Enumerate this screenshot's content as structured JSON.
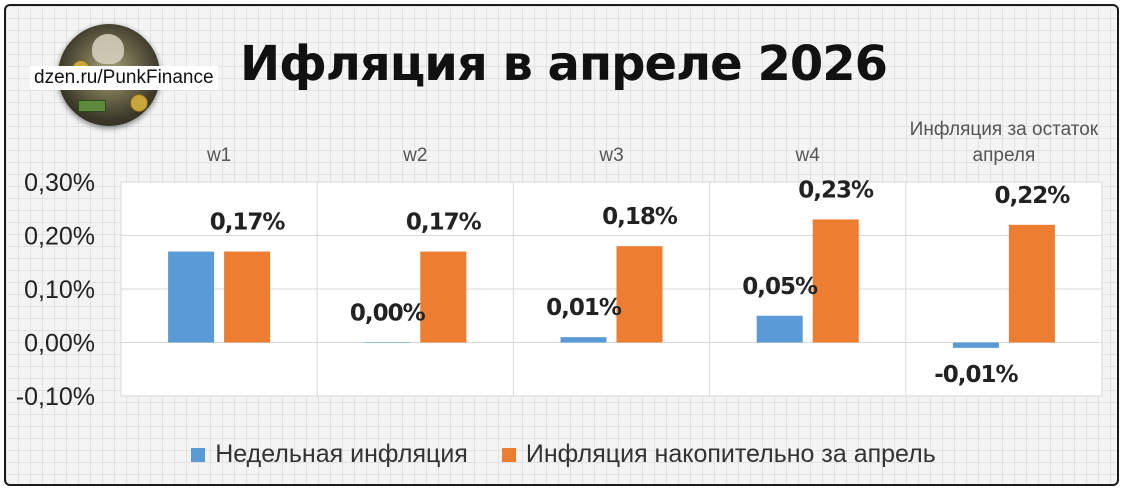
{
  "header": {
    "title": "Ифляция в апреле 2026",
    "site": "dzen.ru/PunkFinance"
  },
  "logo": {
    "icon": "punk-finance-logo"
  },
  "colors": {
    "weekly": "#5b9bd5",
    "cumulative": "#ed7d31",
    "grid": "#d9d9d9"
  },
  "chart_data": {
    "type": "bar",
    "title": "Ифляция в апреле 2026",
    "categories": [
      "w1",
      "w2",
      "w3",
      "w4",
      "Инфляция за остаток апреля"
    ],
    "category_lines": [
      [
        "w1"
      ],
      [
        "w2"
      ],
      [
        "w3"
      ],
      [
        "w4"
      ],
      [
        "Инфляция за остаток",
        "апреля"
      ]
    ],
    "series": [
      {
        "name": "Недельная инфляция",
        "values": [
          0.17,
          0.0,
          0.01,
          0.05,
          -0.01
        ],
        "labels": [
          "",
          "0,00%",
          "0,01%",
          "0,05%",
          "-0,01%"
        ]
      },
      {
        "name": "Инфляция накопительно за апрель",
        "values": [
          0.17,
          0.17,
          0.18,
          0.23,
          0.22
        ],
        "labels": [
          "0,17%",
          "0,17%",
          "0,18%",
          "0,23%",
          "0,22%"
        ]
      }
    ],
    "yticks": [
      0.3,
      0.2,
      0.1,
      0.0,
      -0.1
    ],
    "ytick_labels": [
      "0,30%",
      "0,20%",
      "0,10%",
      "0,00%",
      "-0,10%"
    ],
    "ylim": [
      -0.1,
      0.3
    ],
    "grid": true,
    "legend_position": "bottom"
  }
}
